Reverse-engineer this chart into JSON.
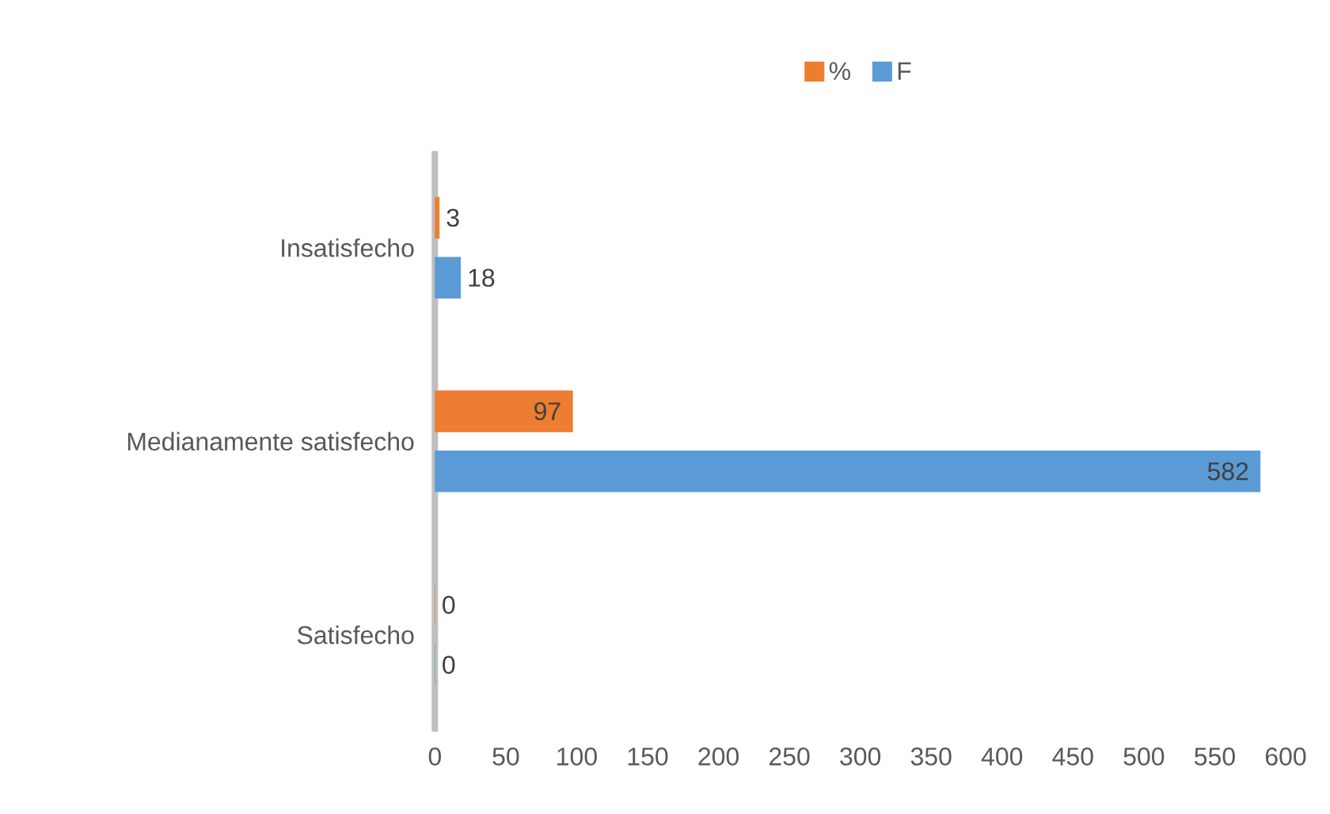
{
  "chart_data": {
    "type": "bar",
    "orientation": "horizontal",
    "categories": [
      "Insatisfecho",
      "Medianamente satisfecho",
      "Satisfecho"
    ],
    "series": [
      {
        "name": "%",
        "color": "#ed7d31",
        "values": [
          3,
          97,
          0
        ]
      },
      {
        "name": "F",
        "color": "#5b9bd5",
        "values": [
          18,
          582,
          0
        ]
      }
    ],
    "xlim": [
      0,
      600
    ],
    "xticks": [
      0,
      50,
      100,
      150,
      200,
      250,
      300,
      350,
      400,
      450,
      500,
      550,
      600
    ],
    "data_labels": true,
    "legend": "top",
    "grid": false
  }
}
